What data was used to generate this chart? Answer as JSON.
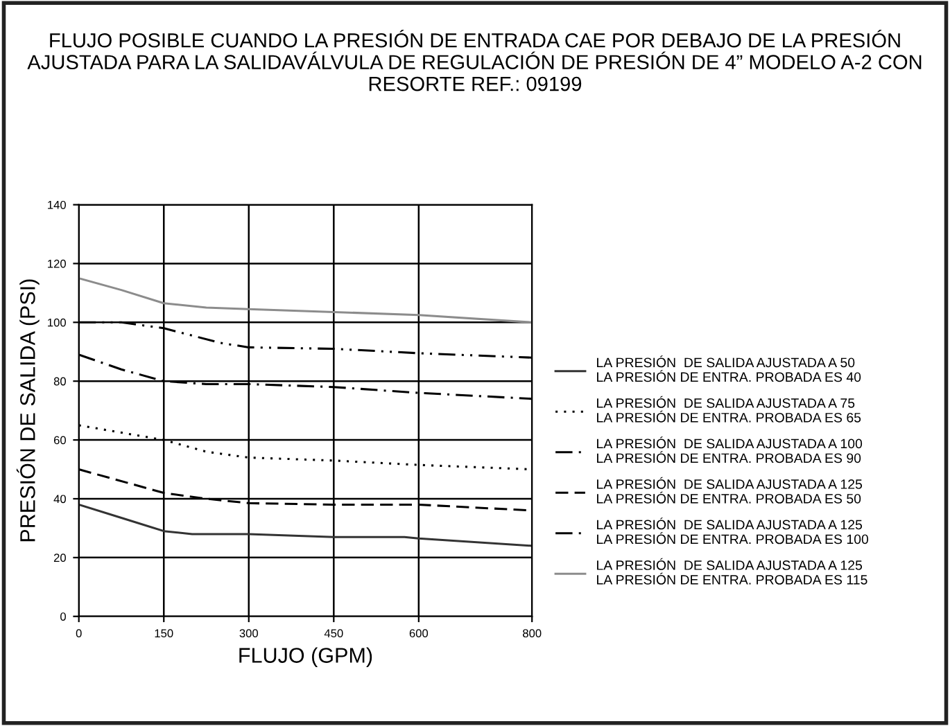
{
  "chart_data": {
    "type": "line",
    "title": "FLUJO POSIBLE CUANDO LA PRESIÓN DE ENTRADA CAE POR DEBAJO DE LA PRESIÓN AJUSTADA PARA LA SALIDAVÁLVULA DE REGULACIÓN DE PRESIÓN DE 4” MODELO A-2 CON RESORTE REF.: 09199",
    "xlabel": "FLUJO (GPM)",
    "ylabel": "PRESIÓN DE SALIDA (PSI)",
    "xlim": [
      0,
      800
    ],
    "xticks": [
      0,
      150,
      300,
      450,
      600,
      800
    ],
    "ylim": [
      0,
      140
    ],
    "yticks": [
      0,
      20,
      40,
      60,
      80,
      100,
      120,
      140
    ],
    "grid": true,
    "legend": "right",
    "marker": "none",
    "series": [
      {
        "name": "LA PRESIÓN  DE SALIDA AJUSTADA A 50\nLA PRESIÓN DE ENTRA. PROBADA ES 40",
        "color": "#333333",
        "line_style": "solid",
        "x": [
          0,
          75,
          150,
          200,
          300,
          450,
          575,
          600,
          800
        ],
        "values": [
          38,
          33.5,
          29,
          28,
          28,
          27,
          27,
          26.5,
          24
        ]
      },
      {
        "name": "LA PRESIÓN  DE SALIDA AJUSTADA A 75\nLA PRESIÓN DE ENTRA. PROBADA ES 65",
        "color": "#000000",
        "line_style": "dotted",
        "x": [
          0,
          150,
          225,
          300,
          450,
          600,
          800
        ],
        "values": [
          65,
          60,
          56,
          54,
          53,
          51.5,
          50
        ]
      },
      {
        "name": "LA PRESIÓN  DE SALIDA AJUSTADA A 100\nLA PRESIÓN DE ENTRA. PROBADA ES 90",
        "color": "#000000",
        "line_style": "dashdot",
        "x": [
          0,
          75,
          150,
          225,
          300,
          450,
          600,
          800
        ],
        "values": [
          89,
          84,
          80,
          79,
          79,
          78,
          76,
          74
        ]
      },
      {
        "name": "LA PRESIÓN  DE SALIDA AJUSTADA A 125\nLA PRESIÓN DE ENTRA. PROBADA ES 50",
        "color": "#000000",
        "line_style": "dashed",
        "x": [
          0,
          150,
          225,
          300,
          450,
          600,
          800
        ],
        "values": [
          50,
          42,
          40,
          38.5,
          38,
          38,
          36
        ]
      },
      {
        "name": "LA PRESIÓN  DE SALIDA AJUSTADA A 125\nLA PRESIÓN DE ENTRA. PROBADA ES 100",
        "color": "#000000",
        "line_style": "dashdotdot",
        "x": [
          0,
          75,
          150,
          250,
          300,
          450,
          600,
          800
        ],
        "values": [
          100,
          100,
          98,
          93,
          91.5,
          91,
          89.5,
          88
        ]
      },
      {
        "name": "LA PRESIÓN  DE SALIDA AJUSTADA A 125\nLA PRESIÓN DE ENTRA. PROBADA ES 115",
        "color": "#8c8c8c",
        "line_style": "solid",
        "x": [
          0,
          75,
          150,
          225,
          300,
          450,
          600,
          800
        ],
        "values": [
          115,
          111,
          106.5,
          105,
          104.5,
          103.5,
          102.5,
          100
        ]
      }
    ]
  }
}
